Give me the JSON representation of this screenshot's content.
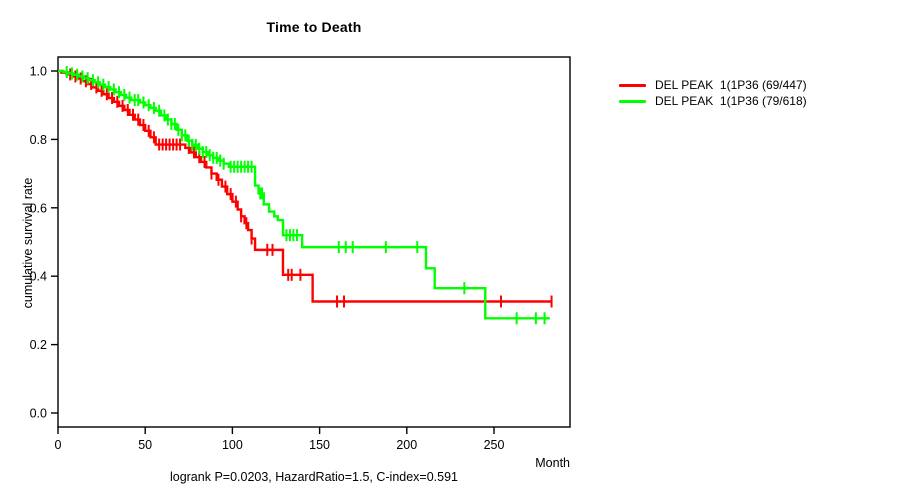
{
  "title": "Time to Death",
  "caption": "logrank P=0.0203, HazardRatio=1.5, C-index=0.591",
  "colors": {
    "series_red": "#FF0000",
    "series_green": "#00FF00",
    "axis": "#000000",
    "background": "#FFFFFF"
  },
  "legend": {
    "items": [
      {
        "label": "DEL PEAK  1(1P36 (69/447)",
        "color": "#FF0000"
      },
      {
        "label": "DEL PEAK  1(1P36 (79/618)",
        "color": "#00FF00"
      }
    ]
  },
  "chart_data": {
    "type": "line",
    "subtype": "kaplan-meier-step",
    "title": "Time to Death",
    "xlabel": "Month",
    "ylabel": "cumulative survival rate",
    "xlim": [
      0,
      293
    ],
    "ylim": [
      -0.04,
      1.04
    ],
    "xticks": [
      0,
      50,
      100,
      150,
      200,
      250
    ],
    "yticks": [
      0.0,
      0.2,
      0.4,
      0.6,
      0.8,
      1.0
    ],
    "grid": false,
    "legend_position": "right-outside",
    "annotation": "logrank P=0.0203, HazardRatio=1.5, C-index=0.591",
    "series": [
      {
        "name": "DEL PEAK  1(1P36 (69/447)",
        "color": "#FF0000",
        "events": "69/447",
        "steps": [
          [
            0,
            1.0
          ],
          [
            2,
            0.995
          ],
          [
            5,
            0.99
          ],
          [
            8,
            0.984
          ],
          [
            11,
            0.978
          ],
          [
            14,
            0.97
          ],
          [
            17,
            0.962
          ],
          [
            20,
            0.952
          ],
          [
            23,
            0.942
          ],
          [
            26,
            0.932
          ],
          [
            29,
            0.921
          ],
          [
            32,
            0.91
          ],
          [
            35,
            0.898
          ],
          [
            38,
            0.886
          ],
          [
            41,
            0.872
          ],
          [
            44,
            0.858
          ],
          [
            47,
            0.842
          ],
          [
            50,
            0.825
          ],
          [
            53,
            0.806
          ],
          [
            56,
            0.785
          ],
          [
            73,
            0.775
          ],
          [
            76,
            0.762
          ],
          [
            79,
            0.748
          ],
          [
            82,
            0.734
          ],
          [
            85,
            0.718
          ],
          [
            88,
            0.7
          ],
          [
            91,
            0.682
          ],
          [
            94,
            0.662
          ],
          [
            97,
            0.64
          ],
          [
            100,
            0.618
          ],
          [
            103,
            0.595
          ],
          [
            105,
            0.575
          ],
          [
            107,
            0.555
          ],
          [
            109,
            0.535
          ],
          [
            111,
            0.51
          ],
          [
            113,
            0.477
          ],
          [
            129,
            0.404
          ],
          [
            146,
            0.326
          ],
          [
            283,
            0.326
          ]
        ],
        "censor_times": [
          7,
          10,
          13,
          16,
          19,
          22,
          25,
          28,
          31,
          34,
          37,
          40,
          43,
          46,
          49,
          52,
          55,
          58,
          60,
          62,
          64,
          66,
          68,
          70,
          75,
          78,
          81,
          84,
          88,
          92,
          96,
          99,
          102,
          105,
          108,
          111,
          120,
          123,
          132,
          134,
          139,
          160,
          164,
          254,
          283
        ]
      },
      {
        "name": "DEL PEAK  1(1P36 (79/618)",
        "color": "#00FF00",
        "events": "79/618",
        "steps": [
          [
            0,
            1.0
          ],
          [
            3,
            0.997
          ],
          [
            6,
            0.993
          ],
          [
            9,
            0.989
          ],
          [
            12,
            0.984
          ],
          [
            15,
            0.979
          ],
          [
            18,
            0.973
          ],
          [
            21,
            0.967
          ],
          [
            24,
            0.96
          ],
          [
            27,
            0.953
          ],
          [
            30,
            0.946
          ],
          [
            33,
            0.938
          ],
          [
            36,
            0.93
          ],
          [
            39,
            0.922
          ],
          [
            42,
            0.915
          ],
          [
            47,
            0.908
          ],
          [
            50,
            0.9
          ],
          [
            53,
            0.892
          ],
          [
            56,
            0.884
          ],
          [
            59,
            0.87
          ],
          [
            62,
            0.858
          ],
          [
            65,
            0.845
          ],
          [
            68,
            0.828
          ],
          [
            71,
            0.812
          ],
          [
            74,
            0.796
          ],
          [
            77,
            0.784
          ],
          [
            80,
            0.773
          ],
          [
            83,
            0.763
          ],
          [
            86,
            0.754
          ],
          [
            89,
            0.746
          ],
          [
            92,
            0.738
          ],
          [
            95,
            0.729
          ],
          [
            98,
            0.72
          ],
          [
            113,
            0.665
          ],
          [
            115,
            0.642
          ],
          [
            118,
            0.61
          ],
          [
            121,
            0.589
          ],
          [
            124,
            0.575
          ],
          [
            126,
            0.564
          ],
          [
            129,
            0.52
          ],
          [
            140,
            0.485
          ],
          [
            211,
            0.423
          ],
          [
            216,
            0.365
          ],
          [
            245,
            0.277
          ],
          [
            282,
            0.277
          ]
        ],
        "censor_times": [
          5,
          8,
          11,
          14,
          17,
          20,
          23,
          26,
          29,
          32,
          35,
          38,
          41,
          44,
          46,
          49,
          52,
          55,
          58,
          61,
          63,
          65,
          67,
          69,
          71,
          73,
          75,
          77,
          79,
          81,
          83,
          85,
          87,
          89,
          91,
          93,
          95,
          99,
          101,
          103,
          105,
          107,
          109,
          111,
          116,
          117,
          131,
          133,
          135,
          137,
          161,
          165,
          169,
          188,
          206,
          233,
          263,
          274,
          279
        ]
      }
    ]
  }
}
